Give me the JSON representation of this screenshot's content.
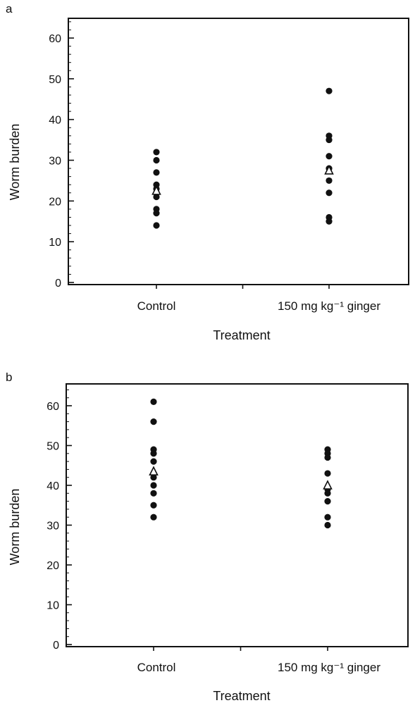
{
  "chart_data": [
    {
      "type": "scatter",
      "panel_label": "a",
      "xlabel": "Treatment",
      "ylabel": "Worm burden",
      "ylim": [
        0,
        65
      ],
      "yticks": [
        "0",
        "10",
        "20",
        "30",
        "40",
        "50",
        "60"
      ],
      "categories": [
        "Control",
        "150 mg kg⁻¹ ginger"
      ],
      "series": [
        {
          "points": [
            [
              0,
              32
            ],
            [
              0,
              30
            ],
            [
              0,
              27
            ],
            [
              0,
              24
            ],
            [
              0,
              23
            ],
            [
              0,
              21
            ],
            [
              0,
              18
            ],
            [
              0,
              17
            ],
            [
              0,
              14
            ]
          ]
        },
        {
          "points": [
            [
              1,
              47
            ],
            [
              1,
              36
            ],
            [
              1,
              35
            ],
            [
              1,
              31
            ],
            [
              1,
              28
            ],
            [
              1,
              25
            ],
            [
              1,
              22
            ],
            [
              1,
              16
            ],
            [
              1,
              15
            ]
          ]
        }
      ],
      "means": [
        22.5,
        27.5
      ]
    },
    {
      "type": "scatter",
      "panel_label": "b",
      "xlabel": "Treatment",
      "ylabel": "Worm burden",
      "ylim": [
        0,
        65
      ],
      "yticks": [
        "0",
        "10",
        "20",
        "30",
        "40",
        "50",
        "60"
      ],
      "categories": [
        "Control",
        "150 mg kg⁻¹ ginger"
      ],
      "series": [
        {
          "points": [
            [
              0,
              61
            ],
            [
              0,
              56
            ],
            [
              0,
              49
            ],
            [
              0,
              48
            ],
            [
              0,
              46
            ],
            [
              0,
              42
            ],
            [
              0,
              40
            ],
            [
              0,
              38
            ],
            [
              0,
              35
            ],
            [
              0,
              32
            ]
          ]
        },
        {
          "points": [
            [
              1,
              49
            ],
            [
              1,
              48
            ],
            [
              1,
              47
            ],
            [
              1,
              43
            ],
            [
              1,
              39
            ],
            [
              1,
              38
            ],
            [
              1,
              36
            ],
            [
              1,
              32
            ],
            [
              1,
              30
            ]
          ]
        }
      ],
      "means": [
        43.5,
        40
      ]
    }
  ]
}
